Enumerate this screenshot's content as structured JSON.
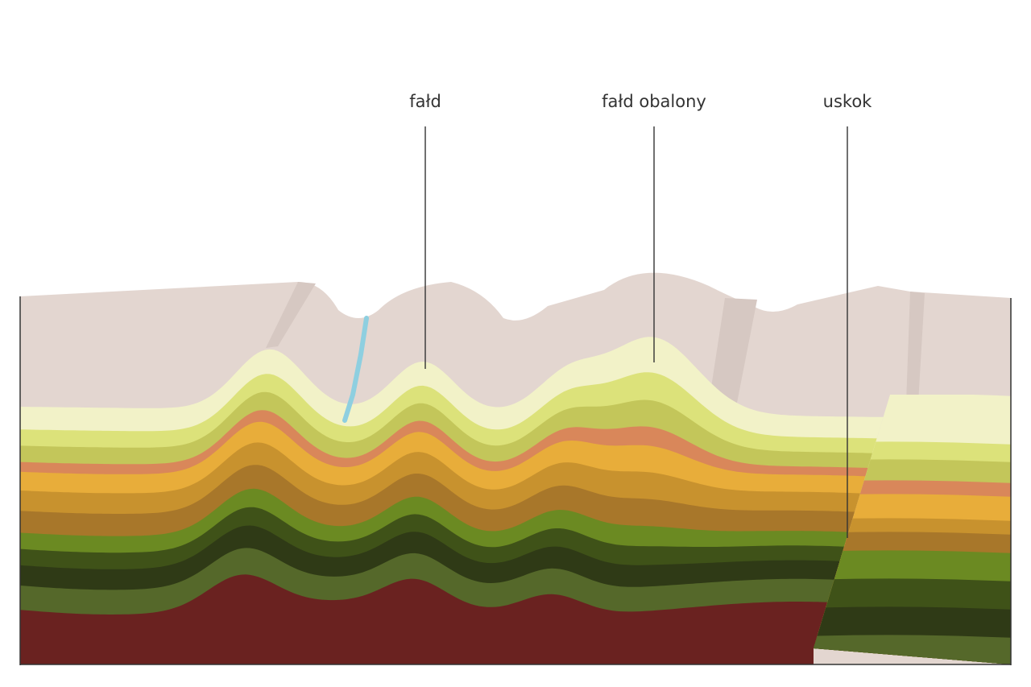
{
  "labels": [
    "fałd",
    "fałd obalony",
    "uskok"
  ]
}
